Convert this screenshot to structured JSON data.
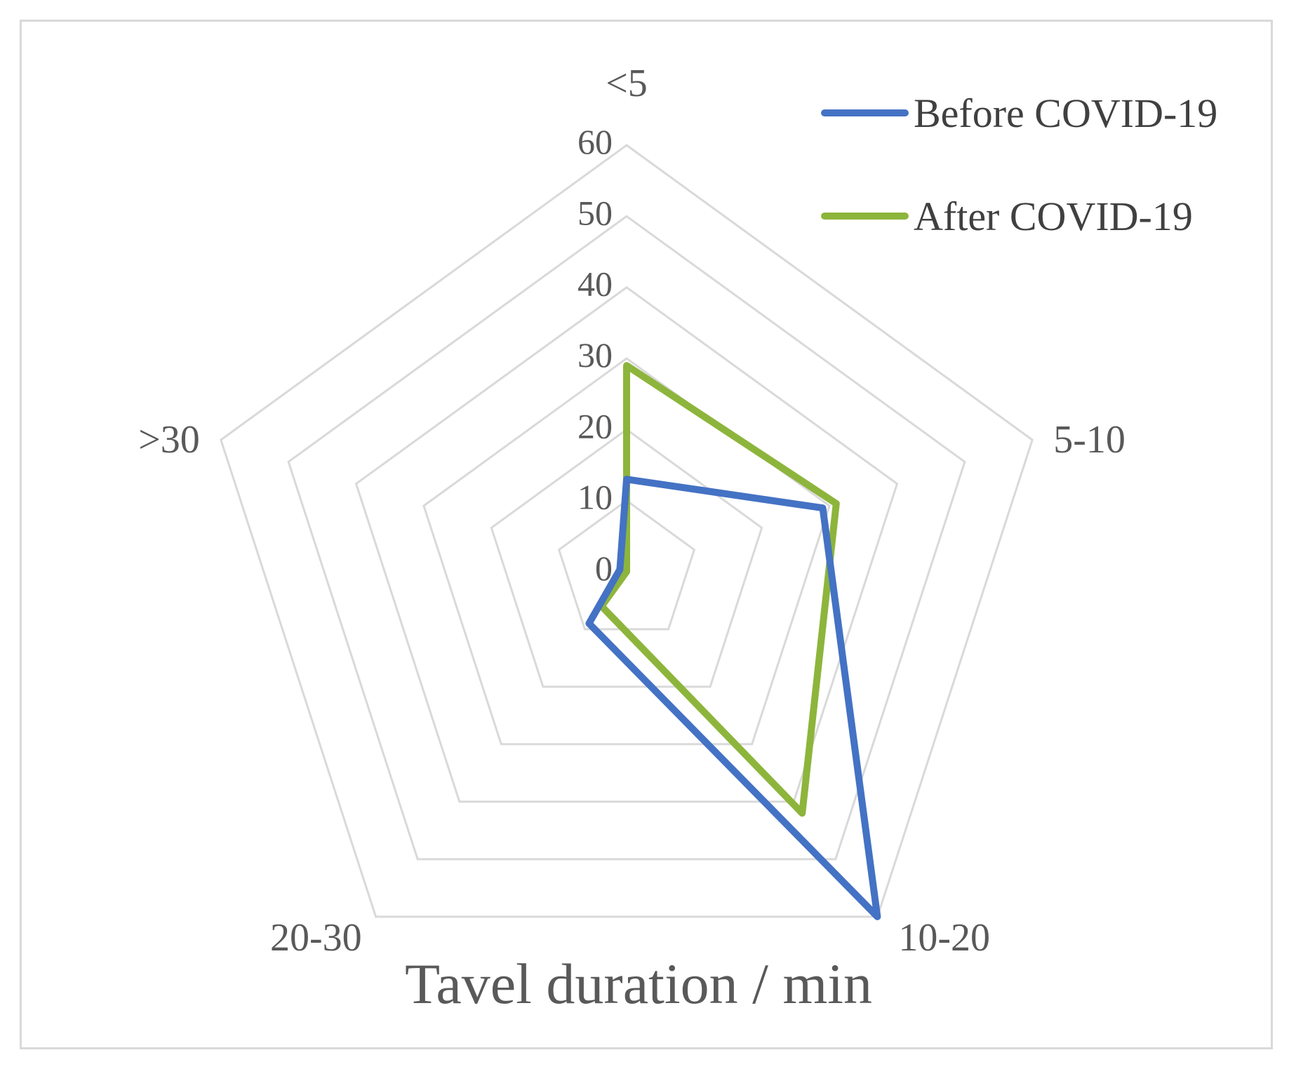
{
  "chart_data": {
    "type": "radar",
    "title": "",
    "xlabel": "Tavel duration / min",
    "categories": [
      "<5",
      "5-10",
      "10-20",
      "20-30",
      ">30"
    ],
    "ticks": [
      "0",
      "10",
      "20",
      "30",
      "40",
      "50",
      "60"
    ],
    "rlim": [
      0,
      60
    ],
    "grid": true,
    "legend_position": "top-right",
    "series": [
      {
        "name": "Before COVID-19",
        "color": "#4472C4",
        "values": [
          13,
          29,
          60,
          9,
          1
        ]
      },
      {
        "name": "After COVID-19",
        "color": "#8DB53C",
        "values": [
          29,
          31,
          42,
          6,
          0
        ]
      }
    ]
  }
}
